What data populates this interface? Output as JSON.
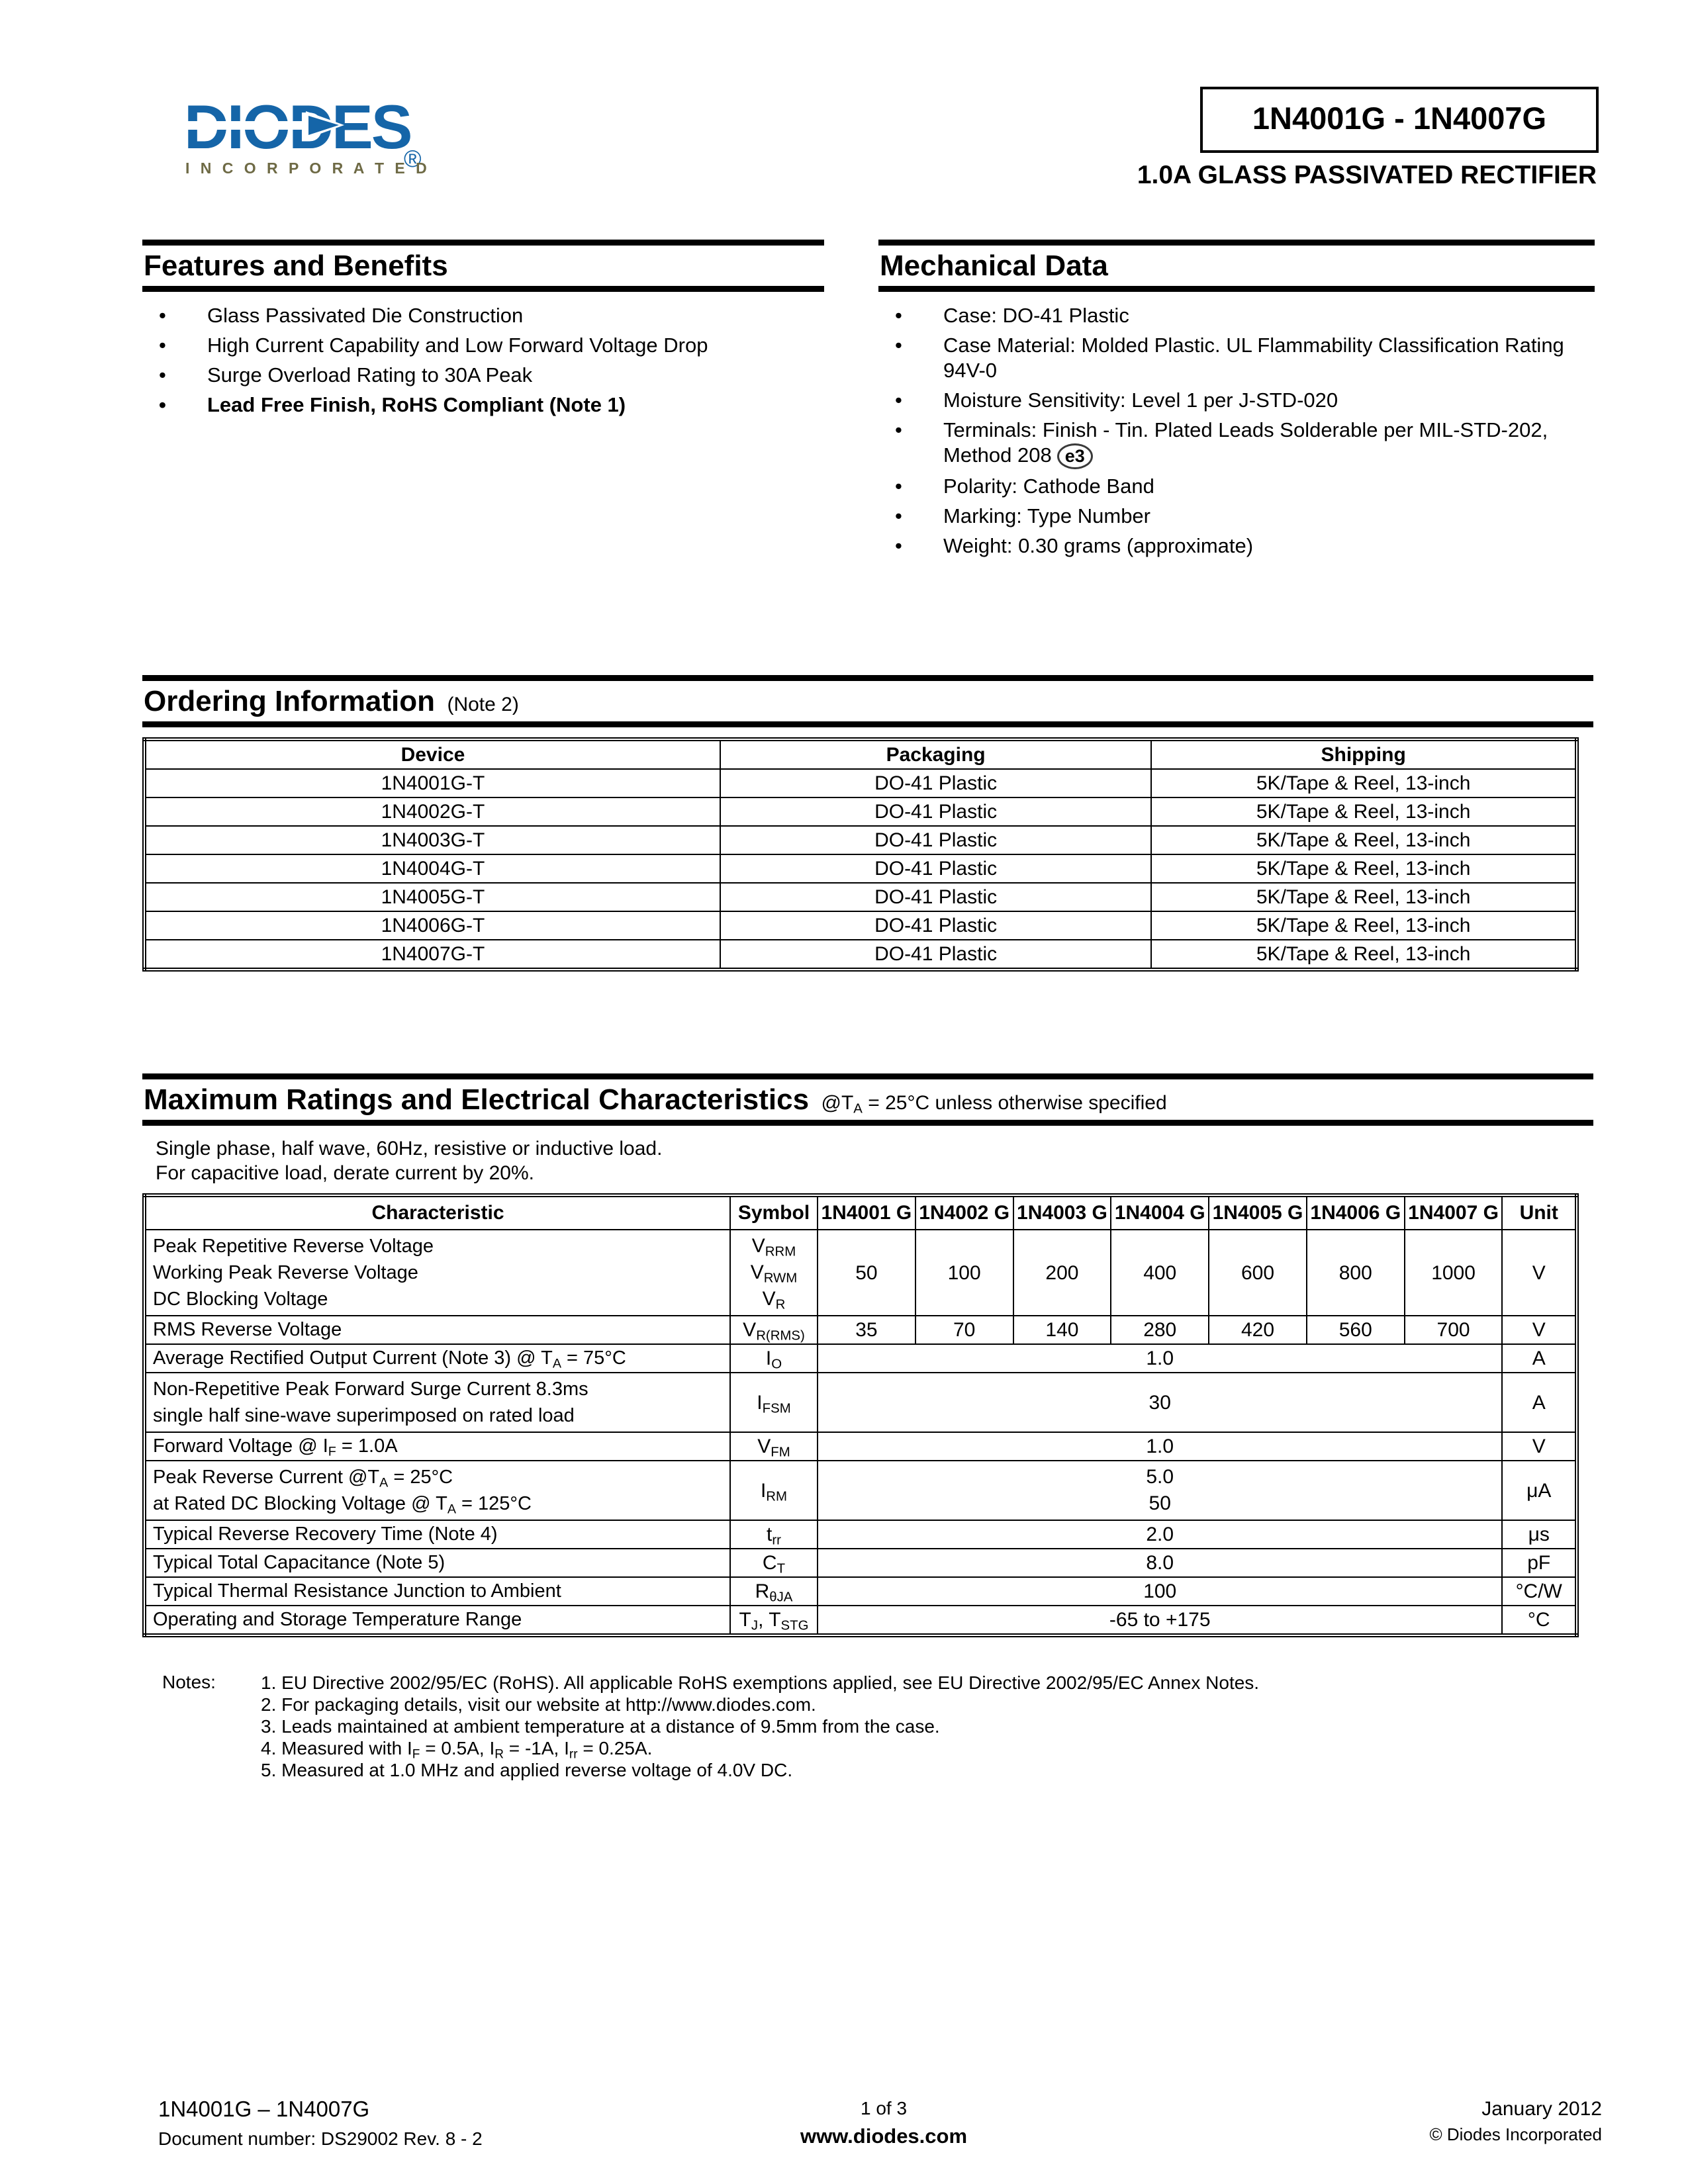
{
  "colors": {
    "logo_blue": "#1565A8",
    "logo_olive": "#6E6A45"
  },
  "header": {
    "brand": "DIODES",
    "brand_registered": "®",
    "brand_sub": "I N C O R P O R A T E D",
    "part_range": "1N4001G - 1N4007G",
    "subtitle": "1.0A GLASS PASSIVATED RECTIFIER"
  },
  "features": {
    "title": "Features and Benefits",
    "items": [
      {
        "text": "Glass Passivated Die Construction",
        "bold": false
      },
      {
        "text": "High Current Capability and Low Forward Voltage Drop",
        "bold": false
      },
      {
        "text": "Surge Overload Rating to 30A Peak",
        "bold": false
      },
      {
        "text": "Lead Free Finish, RoHS Compliant (Note 1)",
        "bold": true
      }
    ]
  },
  "mechanical": {
    "title": "Mechanical Data",
    "items": [
      {
        "text": "Case: DO-41 Plastic"
      },
      {
        "text": "Case Material:  Molded Plastic. UL Flammability Classification Rating 94V-0"
      },
      {
        "text": "Moisture Sensitivity:  Level 1 per J-STD-020"
      },
      {
        "text": "Terminals: Finish - Tin.  Plated Leads Solderable per MIL-STD-202, Method 208",
        "badge": "e3"
      },
      {
        "text": "Polarity: Cathode Band"
      },
      {
        "text": "Marking: Type Number"
      },
      {
        "text": "Weight:  0.30 grams (approximate)"
      }
    ]
  },
  "ordering": {
    "title": "Ordering Information",
    "title_note": "(Note 2)",
    "columns": [
      "Device",
      "Packaging",
      "Shipping"
    ],
    "rows": [
      [
        "1N4001G-T",
        "DO-41 Plastic",
        "5K/Tape & Reel, 13-inch"
      ],
      [
        "1N4002G-T",
        "DO-41 Plastic",
        "5K/Tape & Reel, 13-inch"
      ],
      [
        "1N4003G-T",
        "DO-41 Plastic",
        "5K/Tape & Reel, 13-inch"
      ],
      [
        "1N4004G-T",
        "DO-41 Plastic",
        "5K/Tape & Reel, 13-inch"
      ],
      [
        "1N4005G-T",
        "DO-41 Plastic",
        "5K/Tape & Reel, 13-inch"
      ],
      [
        "1N4006G-T",
        "DO-41 Plastic",
        "5K/Tape & Reel, 13-inch"
      ],
      [
        "1N4007G-T",
        "DO-41 Plastic",
        "5K/Tape & Reel, 13-inch"
      ]
    ]
  },
  "ratings": {
    "title": "Maximum Ratings and Electrical Characteristics",
    "title_note": "@T~A~ = 25°C unless otherwise specified",
    "intro": [
      "Single phase, half wave, 60Hz, resistive or inductive load.",
      "For capacitive load, derate current by 20%."
    ],
    "columns": {
      "characteristic": "Characteristic",
      "symbol": "Symbol",
      "devices": [
        "1N4001 G",
        "1N4002 G",
        "1N4003 G",
        "1N4004 G",
        "1N4005 G",
        "1N4006 G",
        "1N4007 G"
      ],
      "unit": "Unit"
    },
    "rows": [
      {
        "characteristic": [
          "Peak Repetitive Reverse Voltage",
          "Working Peak Reverse Voltage",
          "DC Blocking Voltage"
        ],
        "symbol": [
          "V~RRM~",
          "V~RWM~",
          "V~R~"
        ],
        "values": [
          "50",
          "100",
          "200",
          "400",
          "600",
          "800",
          "1000"
        ],
        "unit": "V"
      },
      {
        "characteristic": [
          "RMS Reverse Voltage"
        ],
        "symbol": [
          "V~R(RMS)~"
        ],
        "values": [
          "35",
          "70",
          "140",
          "280",
          "420",
          "560",
          "700"
        ],
        "unit": "V"
      },
      {
        "characteristic": [
          "Average Rectified Output Current (Note 3) @ T~A~ = 75°C"
        ],
        "symbol": [
          "I~O~"
        ],
        "values": [
          "1.0"
        ],
        "unit": "A"
      },
      {
        "characteristic": [
          "Non-Repetitive Peak Forward Surge Current 8.3ms",
          "single half sine-wave superimposed on rated load"
        ],
        "symbol": [
          "I~FSM~"
        ],
        "values": [
          "30"
        ],
        "unit": "A"
      },
      {
        "characteristic": [
          "Forward Voltage @ I~F~ = 1.0A"
        ],
        "symbol": [
          "V~FM~"
        ],
        "values": [
          "1.0"
        ],
        "unit": "V"
      },
      {
        "characteristic": [
          "Peak Reverse Current @T~A~ =  25°C",
          "at Rated DC Blocking Voltage @ T~A~ = 125°C"
        ],
        "symbol": [
          "I~RM~"
        ],
        "values": [
          "5.0",
          "50"
        ],
        "unit": "μA"
      },
      {
        "characteristic": [
          "Typical Reverse Recovery Time (Note 4)"
        ],
        "symbol": [
          "t~rr~"
        ],
        "values": [
          "2.0"
        ],
        "unit": "μs"
      },
      {
        "characteristic": [
          "Typical Total Capacitance (Note 5)"
        ],
        "symbol": [
          "C~T~"
        ],
        "values": [
          "8.0"
        ],
        "unit": "pF"
      },
      {
        "characteristic": [
          "Typical Thermal Resistance Junction to Ambient"
        ],
        "symbol": [
          "R~θJA~"
        ],
        "values": [
          "100"
        ],
        "unit": "°C/W"
      },
      {
        "characteristic": [
          "Operating and Storage Temperature Range"
        ],
        "symbol": [
          "T~J~, T~STG~"
        ],
        "values": [
          "-65 to +175"
        ],
        "unit": "°C"
      }
    ]
  },
  "notes": {
    "label": "Notes:",
    "items": [
      "1. EU Directive 2002/95/EC (RoHS). All applicable RoHS exemptions applied, see EU Directive 2002/95/EC Annex Notes.",
      "2. For packaging details, visit our website at http://www.diodes.com.",
      "3. Leads maintained at ambient temperature at a distance of 9.5mm from the case.",
      "4. Measured with I~F~ = 0.5A, I~R~ = -1A, I~rr~ = 0.25A.",
      "5. Measured at 1.0 MHz and applied reverse voltage of 4.0V DC."
    ]
  },
  "footer": {
    "left_line1": "1N4001G – 1N4007G",
    "left_line2": "Document number: DS29002 Rev. 8 - 2",
    "center_line1": "1 of 3",
    "center_line2": "www.diodes.com",
    "right_line1": "January 2012",
    "right_line2": "© Diodes Incorporated"
  }
}
